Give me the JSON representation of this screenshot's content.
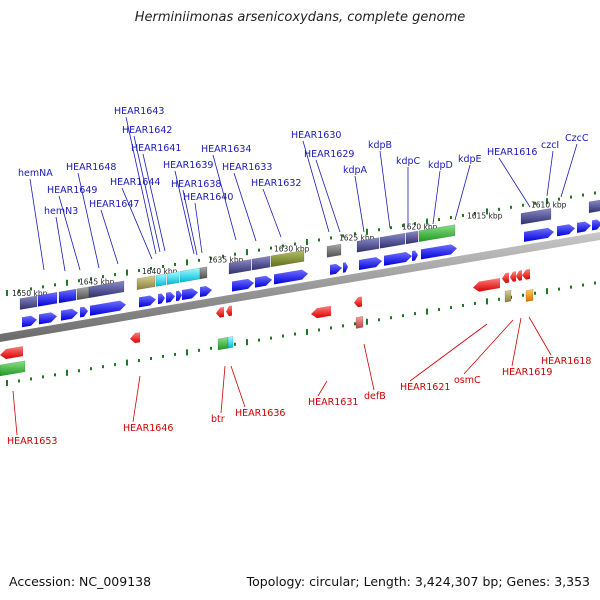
{
  "title": "Herminiimonas arsenicoxydans, complete genome",
  "footer": {
    "accession": "Accession: NC_009138",
    "topology": "Topology: circular; Length: 3,424,307 bp; Genes: 3,353"
  },
  "colors": {
    "forward_label": "#1a1ab8",
    "reverse_label": "#cc0000",
    "ticks": "#1e7a1e",
    "axis": "#9a9a9a"
  },
  "kbp_ticks": [
    "1650 kbp",
    "1645 kbp",
    "1640 kbp",
    "1635 kbp",
    "1630 kbp",
    "1625 kbp",
    "1620 kbp",
    "1615 kbp",
    "1610 kbp"
  ],
  "forward_genes": [
    "hemNA",
    "hemN3",
    "HEAR1649",
    "HEAR1648",
    "HEAR1647",
    "HEAR1644",
    "HEAR1643",
    "HEAR1642",
    "HEAR1641",
    "HEAR1640",
    "HEAR1639",
    "HEAR1638",
    "HEAR1634",
    "HEAR1633",
    "HEAR1632",
    "HEAR1630",
    "HEAR1629",
    "kdpA",
    "kdpB",
    "kdpC",
    "kdpD",
    "kdpE",
    "HEAR1616",
    "czcI",
    "CzcC"
  ],
  "reverse_genes": [
    "HEAR1653",
    "HEAR1646",
    "btr",
    "HEAR1636",
    "HEAR1631",
    "defB",
    "HEAR1621",
    "osmC",
    "HEAR1619",
    "HEAR1618"
  ]
}
